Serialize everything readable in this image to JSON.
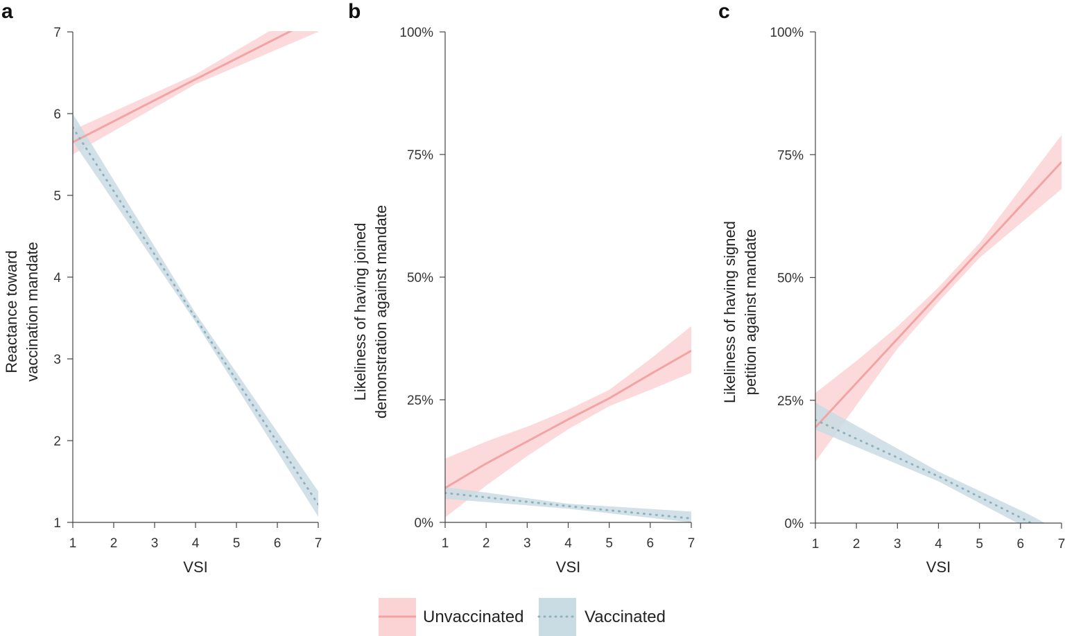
{
  "colors": {
    "unvaccinated_line": "#f2a4a4",
    "unvaccinated_band": "#fbd3d5",
    "vaccinated_line": "#8fb1bf",
    "vaccinated_band": "#c9dce3",
    "axis": "#444444"
  },
  "legend": {
    "unvaccinated": "Unvaccinated",
    "vaccinated": "Vaccinated",
    "placement": "bottom-center"
  },
  "chart_data": [
    {
      "type": "line",
      "panel": "a",
      "xlabel": "VSI",
      "ylabel": [
        "Reactance toward",
        "vaccination mandate"
      ],
      "xlim": [
        1,
        7
      ],
      "ylim": [
        1,
        7
      ],
      "xticks": [
        "1",
        "2",
        "3",
        "4",
        "5",
        "6",
        "7"
      ],
      "yticks": [
        "1",
        "2",
        "3",
        "4",
        "5",
        "6",
        "7"
      ],
      "ytick_values": [
        1,
        2,
        3,
        4,
        5,
        6,
        7
      ],
      "grid": false,
      "series": [
        {
          "name": "Unvaccinated",
          "style": "solid",
          "x": [
            1,
            4,
            7
          ],
          "y": [
            5.65,
            6.42,
            7.18
          ],
          "lower": [
            5.5,
            6.36,
            7.0
          ],
          "upper": [
            5.8,
            6.48,
            7.36
          ]
        },
        {
          "name": "Vaccinated",
          "style": "dotted",
          "x": [
            1,
            4,
            7
          ],
          "y": [
            5.83,
            3.5,
            1.22
          ],
          "lower": [
            5.66,
            3.45,
            1.07
          ],
          "upper": [
            6.0,
            3.56,
            1.38
          ]
        }
      ]
    },
    {
      "type": "line",
      "panel": "b",
      "xlabel": "VSI",
      "ylabel": [
        "Likeliness of having joined",
        "demonstration against mandate"
      ],
      "xlim": [
        1,
        7
      ],
      "ylim": [
        0,
        100
      ],
      "xticks": [
        "1",
        "2",
        "3",
        "4",
        "5",
        "6",
        "7"
      ],
      "yticks": [
        "0%",
        "25%",
        "50%",
        "75%",
        "100%"
      ],
      "ytick_values": [
        0,
        25,
        50,
        75,
        100
      ],
      "grid": false,
      "series": [
        {
          "name": "Unvaccinated",
          "style": "solid",
          "x": [
            1,
            2,
            3,
            4,
            5,
            6,
            7
          ],
          "y": [
            7,
            12,
            16.5,
            21,
            25.3,
            30.2,
            35
          ],
          "lower": [
            1,
            7.5,
            13.5,
            19,
            23.7,
            27,
            30.5
          ],
          "upper": [
            13,
            16.5,
            19.5,
            23,
            27,
            33.3,
            40
          ]
        },
        {
          "name": "Vaccinated",
          "style": "dotted",
          "x": [
            1,
            4,
            7
          ],
          "y": [
            6,
            3.3,
            0.8
          ],
          "lower": [
            4.8,
            2.8,
            0
          ],
          "upper": [
            7.2,
            3.8,
            2.2
          ]
        }
      ]
    },
    {
      "type": "line",
      "panel": "c",
      "xlabel": "VSI",
      "ylabel": [
        "Likeliness of having signed",
        "petition against mandate"
      ],
      "xlim": [
        1,
        7
      ],
      "ylim": [
        0,
        100
      ],
      "xticks": [
        "1",
        "2",
        "3",
        "4",
        "5",
        "6",
        "7"
      ],
      "yticks": [
        "0%",
        "25%",
        "50%",
        "75%",
        "100%"
      ],
      "ytick_values": [
        0,
        25,
        50,
        75,
        100
      ],
      "grid": false,
      "series": [
        {
          "name": "Unvaccinated",
          "style": "solid",
          "x": [
            1,
            2,
            3,
            4,
            5,
            6,
            7
          ],
          "y": [
            19.5,
            28.5,
            37.5,
            46.5,
            55.5,
            64.5,
            73.5
          ],
          "lower": [
            12.5,
            24,
            35.5,
            45,
            54,
            61,
            68
          ],
          "upper": [
            26.5,
            33,
            40,
            48,
            57,
            68,
            79
          ]
        },
        {
          "name": "Vaccinated",
          "style": "dotted",
          "x": [
            1,
            4,
            6.15,
            6.6
          ],
          "y": [
            21,
            9.5,
            0.5,
            -1.5
          ],
          "lower": [
            19,
            8.5,
            -1,
            -3
          ],
          "upper": [
            24.5,
            10.5,
            2,
            0
          ]
        }
      ]
    }
  ]
}
